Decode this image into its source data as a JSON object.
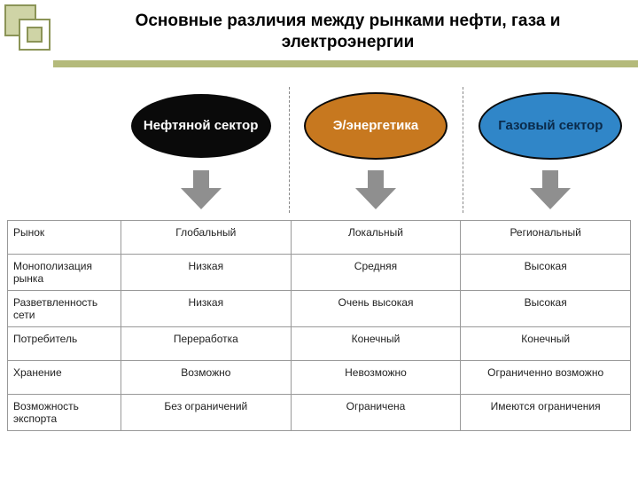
{
  "title": "Основные различия между рынками нефти, газа и электроэнергии",
  "header_accent_color": "#b4ba7b",
  "corner_square": {
    "stroke": "#8b9457",
    "fill_back": "#cfd4a6",
    "fill_front": "#ffffff"
  },
  "sectors": [
    {
      "label": "Нефтяной сектор",
      "fill": "#0a0a0a",
      "text_color": "#ffffff",
      "border": "#ffffff"
    },
    {
      "label": "Э/энергетика",
      "fill": "#c7781f",
      "text_color": "#ffffff",
      "border": "#0a0a0a"
    },
    {
      "label": "Газовый сектор",
      "fill": "#3086c8",
      "text_color": "#0a2a4a",
      "border": "#0a0a0a"
    }
  ],
  "arrow_color": "#8f8f8f",
  "divider_color": "#888888",
  "table": {
    "border_color": "#999999",
    "rows": [
      {
        "label": "Рынок",
        "cells": [
          "Глобальный",
          "Локальный",
          "Региональный"
        ]
      },
      {
        "label": "Монополизация рынка",
        "cells": [
          "Низкая",
          "Средняя",
          "Высокая"
        ]
      },
      {
        "label": "Разветвленность сети",
        "cells": [
          "Низкая",
          "Очень высокая",
          "Высокая"
        ]
      },
      {
        "label": "Потребитель",
        "cells": [
          "Переработка",
          "Конечный",
          "Конечный"
        ]
      },
      {
        "label": "Хранение",
        "cells": [
          "Возможно",
          "Невозможно",
          "Ограниченно возможно"
        ]
      },
      {
        "label": "Возможность экспорта",
        "cells": [
          "Без ограничений",
          "Ограничена",
          "Имеются ограничения"
        ]
      }
    ]
  }
}
